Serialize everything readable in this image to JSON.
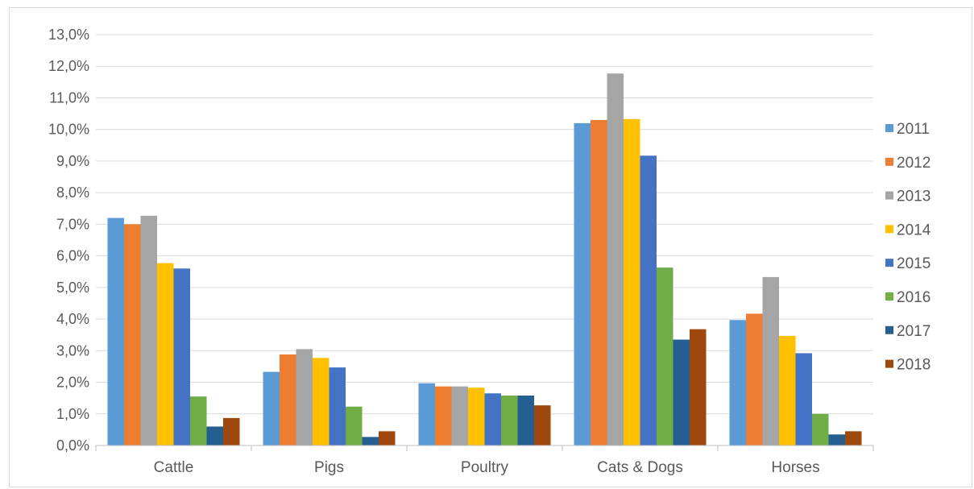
{
  "chart_data": {
    "type": "bar",
    "title": "",
    "xlabel": "",
    "ylabel": "",
    "categories": [
      "Cattle",
      "Pigs",
      "Poultry",
      "Cats & Dogs",
      "Horses"
    ],
    "ylim": [
      0,
      13
    ],
    "yticks": [
      0,
      1,
      2,
      3,
      4,
      5,
      6,
      7,
      8,
      9,
      10,
      11,
      12,
      13
    ],
    "ytick_labels": [
      "0,0%",
      "1,0%",
      "2,0%",
      "3,0%",
      "4,0%",
      "5,0%",
      "6,0%",
      "7,0%",
      "8,0%",
      "9,0%",
      "10,0%",
      "11,0%",
      "12,0%",
      "13,0%"
    ],
    "grid": true,
    "legend_position": "right",
    "series": [
      {
        "name": "2011",
        "color": "#5b9bd5",
        "values": [
          7.2,
          2.33,
          1.97,
          10.2,
          3.97
        ]
      },
      {
        "name": "2012",
        "color": "#ed7d31",
        "values": [
          7.0,
          2.88,
          1.87,
          10.3,
          4.17
        ]
      },
      {
        "name": "2013",
        "color": "#a5a5a5",
        "values": [
          7.27,
          3.05,
          1.87,
          11.77,
          5.33
        ]
      },
      {
        "name": "2014",
        "color": "#ffc000",
        "values": [
          5.77,
          2.77,
          1.83,
          10.33,
          3.47
        ]
      },
      {
        "name": "2015",
        "color": "#4472c4",
        "values": [
          5.6,
          2.47,
          1.65,
          9.17,
          2.92
        ]
      },
      {
        "name": "2016",
        "color": "#70ad47",
        "values": [
          1.55,
          1.23,
          1.58,
          5.63,
          1.0
        ]
      },
      {
        "name": "2017",
        "color": "#255e91",
        "values": [
          0.6,
          0.27,
          1.58,
          3.35,
          0.35
        ]
      },
      {
        "name": "2018",
        "color": "#9e480e",
        "values": [
          0.87,
          0.45,
          1.27,
          3.68,
          0.45
        ]
      }
    ]
  }
}
